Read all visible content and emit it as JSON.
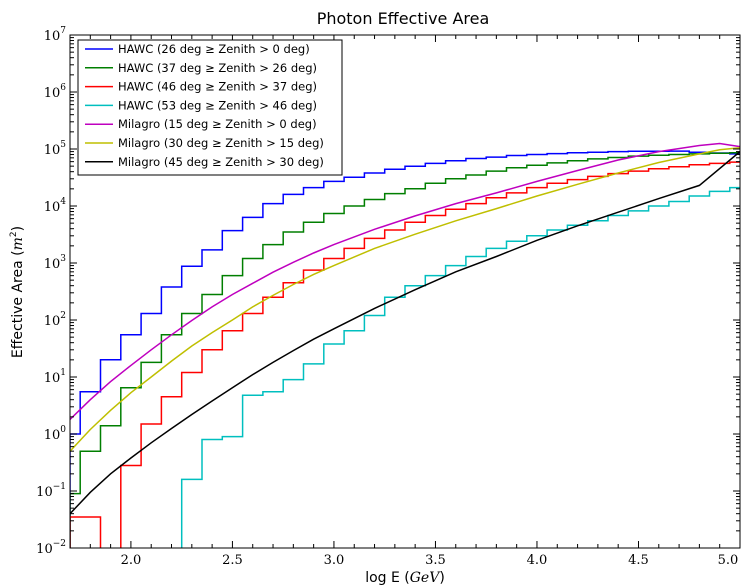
{
  "chart_data": {
    "type": "line",
    "title": "Photon Effective Area",
    "xlabel": "log E (GeV)",
    "ylabel": "Effective Area (m²)",
    "xlabel_parts": {
      "prefix": "log E (",
      "var": "GeV",
      "suffix": ")"
    },
    "ylabel_parts": {
      "prefix": "Effective Area (",
      "var": "m",
      "sup": "2",
      "suffix": ")"
    },
    "xlim": [
      1.7,
      5.0
    ],
    "ylim": [
      0.01,
      10000000
    ],
    "yscale": "log",
    "x_ticks": [
      "2.0",
      "2.5",
      "3.0",
      "3.5",
      "4.0",
      "4.5",
      "5.0"
    ],
    "y_ticks": [
      {
        "base": "10",
        "exp": "−2"
      },
      {
        "base": "10",
        "exp": "−1"
      },
      {
        "base": "10",
        "exp": "0"
      },
      {
        "base": "10",
        "exp": "1"
      },
      {
        "base": "10",
        "exp": "2"
      },
      {
        "base": "10",
        "exp": "3"
      },
      {
        "base": "10",
        "exp": "4"
      },
      {
        "base": "10",
        "exp": "5"
      },
      {
        "base": "10",
        "exp": "6"
      },
      {
        "base": "10",
        "exp": "7"
      }
    ],
    "grid": false,
    "legend_position": "top-left",
    "series": [
      {
        "name": "HAWC (26 deg ≥ Zenith > 0 deg)",
        "label_parts": [
          "HAWC (26 deg ",
          "≥",
          " Zenith ",
          ">",
          " 0 deg)"
        ],
        "color": "#0000ff",
        "style": "step",
        "bin_edges": [
          1.7,
          1.75,
          1.85,
          1.95,
          2.05,
          2.15,
          2.25,
          2.35,
          2.45,
          2.55,
          2.65,
          2.75,
          2.85,
          2.95,
          3.05,
          3.15,
          3.25,
          3.35,
          3.45,
          3.55,
          3.65,
          3.75,
          3.85,
          3.95,
          4.05,
          4.15,
          4.25,
          4.35,
          4.45,
          4.55,
          4.65,
          4.75,
          4.85,
          4.95,
          5.0
        ],
        "values": [
          1.0,
          5.5,
          20,
          55,
          130,
          380,
          880,
          1700,
          3700,
          6300,
          11000,
          16000,
          21000,
          27000,
          32000,
          38000,
          44000,
          50000,
          56000,
          62000,
          68000,
          72000,
          77000,
          80000,
          83000,
          86000,
          88000,
          90000,
          91000,
          91000,
          92000,
          88000,
          85000,
          82000
        ]
      },
      {
        "name": "HAWC (37 deg ≥ Zenith > 26 deg)",
        "label_parts": [
          "HAWC (37 deg ",
          "≥",
          " Zenith ",
          ">",
          " 26 deg)"
        ],
        "color": "#007f00",
        "style": "step",
        "bin_edges": [
          1.7,
          1.75,
          1.85,
          1.95,
          2.05,
          2.15,
          2.25,
          2.35,
          2.45,
          2.55,
          2.65,
          2.75,
          2.85,
          2.95,
          3.05,
          3.15,
          3.25,
          3.35,
          3.45,
          3.55,
          3.65,
          3.75,
          3.85,
          3.95,
          4.05,
          4.15,
          4.25,
          4.35,
          4.45,
          4.55,
          4.65,
          4.75,
          4.85,
          4.95,
          5.0
        ],
        "values": [
          0.09,
          0.5,
          1.4,
          6.5,
          18,
          55,
          130,
          280,
          600,
          1200,
          2100,
          3500,
          5200,
          7400,
          10000,
          13000,
          16500,
          20000,
          25000,
          30000,
          35000,
          41000,
          47000,
          52000,
          57000,
          62000,
          67000,
          71000,
          75000,
          78000,
          80000,
          82000,
          84000,
          86000
        ]
      },
      {
        "name": "HAWC (46 deg ≥ Zenith > 37 deg)",
        "label_parts": [
          "HAWC (46 deg ",
          "≥",
          " Zenith ",
          ">",
          " 37 deg)"
        ],
        "color": "#ff0000",
        "style": "step",
        "bin_edges": [
          1.7,
          1.75,
          1.85,
          1.95,
          2.05,
          2.15,
          2.25,
          2.35,
          2.45,
          2.55,
          2.65,
          2.75,
          2.85,
          2.95,
          3.05,
          3.15,
          3.25,
          3.35,
          3.45,
          3.55,
          3.65,
          3.75,
          3.85,
          3.95,
          4.05,
          4.15,
          4.25,
          4.35,
          4.45,
          4.55,
          4.65,
          4.75,
          4.85,
          4.95,
          5.0
        ],
        "values": [
          0.035,
          0.035,
          0.001,
          0.28,
          1.5,
          4.5,
          12,
          30,
          65,
          130,
          250,
          450,
          750,
          1200,
          1800,
          2700,
          3800,
          5200,
          6800,
          8800,
          11000,
          14000,
          17000,
          21000,
          25000,
          29000,
          33000,
          37000,
          41000,
          45000,
          49000,
          53000,
          56000,
          59000
        ]
      },
      {
        "name": "HAWC (53 deg ≥ Zenith > 46 deg)",
        "label_parts": [
          "HAWC (53 deg ",
          "≥",
          " Zenith ",
          ">",
          " 46 deg)"
        ],
        "color": "#00bfbf",
        "style": "step",
        "bin_edges": [
          2.25,
          2.35,
          2.45,
          2.55,
          2.65,
          2.75,
          2.85,
          2.95,
          3.05,
          3.15,
          3.25,
          3.35,
          3.45,
          3.55,
          3.65,
          3.75,
          3.85,
          3.95,
          4.05,
          4.15,
          4.25,
          4.35,
          4.45,
          4.55,
          4.65,
          4.75,
          4.85,
          4.95,
          5.0
        ],
        "values": [
          0.16,
          0.8,
          0.9,
          4.8,
          5.5,
          9,
          17,
          38,
          65,
          120,
          250,
          400,
          600,
          900,
          1300,
          1800,
          2400,
          3000,
          3800,
          4600,
          5500,
          6800,
          8200,
          10000,
          12000,
          15000,
          18000,
          21000
        ]
      },
      {
        "name": "Milagro (15 deg ≥ Zenith > 0 deg)",
        "label_parts": [
          "Milagro (15 deg ",
          "≥",
          " Zenith ",
          ">",
          " 0 deg)"
        ],
        "color": "#bf00bf",
        "style": "line",
        "x": [
          1.7,
          1.8,
          1.9,
          2.0,
          2.1,
          2.2,
          2.3,
          2.4,
          2.5,
          2.6,
          2.7,
          2.8,
          2.9,
          3.0,
          3.2,
          3.4,
          3.6,
          3.8,
          4.0,
          4.2,
          4.4,
          4.6,
          4.8,
          4.9,
          5.0
        ],
        "values": [
          1.8,
          4.0,
          8.3,
          16,
          30,
          55,
          98,
          170,
          280,
          440,
          690,
          1030,
          1500,
          2100,
          3900,
          6700,
          11000,
          17000,
          27000,
          42000,
          64000,
          90000,
          115000,
          125000,
          110000
        ]
      },
      {
        "name": "Milagro (30 deg ≥ Zenith > 15 deg)",
        "label_parts": [
          "Milagro (30 deg ",
          "≥",
          " Zenith ",
          ">",
          " 15 deg)"
        ],
        "color": "#bfbf00",
        "style": "line",
        "x": [
          1.7,
          1.8,
          1.9,
          2.0,
          2.1,
          2.2,
          2.3,
          2.4,
          2.5,
          2.6,
          2.7,
          2.8,
          2.9,
          3.0,
          3.2,
          3.4,
          3.6,
          3.8,
          4.0,
          4.2,
          4.4,
          4.6,
          4.8,
          4.9,
          5.0
        ],
        "values": [
          0.5,
          1.2,
          2.6,
          5.3,
          10,
          19,
          35,
          60,
          100,
          170,
          270,
          420,
          630,
          900,
          1800,
          3200,
          5500,
          9000,
          15000,
          24000,
          38000,
          58000,
          82000,
          97000,
          105000
        ]
      },
      {
        "name": "Milagro (45 deg ≥ Zenith > 30 deg)",
        "label_parts": [
          "Milagro (45 deg ",
          "≥",
          " Zenith ",
          ">",
          " 30 deg)"
        ],
        "color": "#000000",
        "style": "line",
        "x": [
          1.7,
          1.8,
          1.9,
          2.0,
          2.1,
          2.2,
          2.3,
          2.4,
          2.5,
          2.6,
          2.7,
          2.8,
          2.9,
          3.0,
          3.2,
          3.4,
          3.6,
          3.8,
          4.0,
          4.2,
          4.4,
          4.6,
          4.8,
          5.0
        ],
        "values": [
          0.04,
          0.095,
          0.2,
          0.38,
          0.7,
          1.25,
          2.2,
          3.8,
          6.5,
          11,
          18,
          29,
          46,
          70,
          160,
          340,
          700,
          1300,
          2500,
          4500,
          7800,
          13500,
          23000,
          90000
        ]
      }
    ]
  }
}
